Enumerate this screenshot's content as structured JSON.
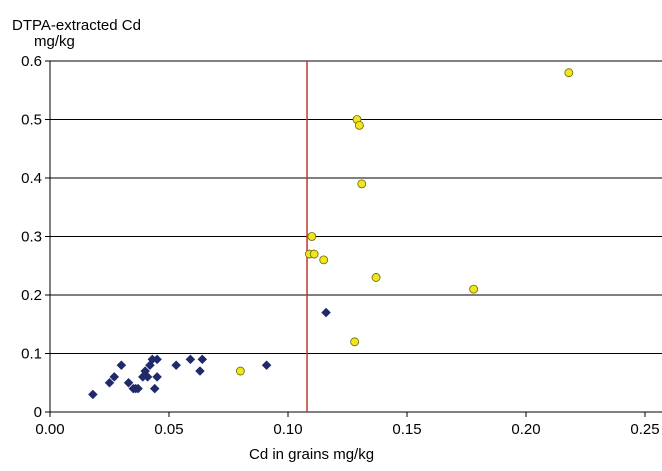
{
  "chart_data": {
    "type": "scatter",
    "title": "",
    "ylabel_line1": "DTPA-extracted Cd",
    "ylabel_line2": "mg/kg",
    "xlabel": "Cd in grains mg/kg",
    "xlim": [
      0,
      0.25
    ],
    "ylim": [
      0,
      0.6
    ],
    "xticks": [
      "0.00",
      "0.05",
      "0.10",
      "0.15",
      "0.20",
      "0.25"
    ],
    "yticks": [
      "0",
      "0.1",
      "0.2",
      "0.3",
      "0.4",
      "0.5",
      "0.6"
    ],
    "grid": "horizontal",
    "threshold_x": 0.108,
    "colors": {
      "threshold_line": "#c0392b",
      "diamond": "#1f2a6b",
      "circle_fill": "#f0e61e",
      "circle_stroke": "#6b6200",
      "grid": "#000000"
    },
    "series": [
      {
        "marker": "diamond",
        "points": [
          [
            0.018,
            0.03
          ],
          [
            0.025,
            0.05
          ],
          [
            0.027,
            0.06
          ],
          [
            0.03,
            0.08
          ],
          [
            0.033,
            0.05
          ],
          [
            0.035,
            0.04
          ],
          [
            0.036,
            0.04
          ],
          [
            0.037,
            0.04
          ],
          [
            0.039,
            0.06
          ],
          [
            0.04,
            0.07
          ],
          [
            0.041,
            0.06
          ],
          [
            0.042,
            0.08
          ],
          [
            0.043,
            0.09
          ],
          [
            0.044,
            0.04
          ],
          [
            0.045,
            0.09
          ],
          [
            0.045,
            0.06
          ],
          [
            0.053,
            0.08
          ],
          [
            0.059,
            0.09
          ],
          [
            0.063,
            0.07
          ],
          [
            0.064,
            0.09
          ],
          [
            0.091,
            0.08
          ],
          [
            0.116,
            0.17
          ]
        ]
      },
      {
        "marker": "circle",
        "points": [
          [
            0.08,
            0.07
          ],
          [
            0.109,
            0.27
          ],
          [
            0.11,
            0.3
          ],
          [
            0.111,
            0.27
          ],
          [
            0.115,
            0.26
          ],
          [
            0.128,
            0.12
          ],
          [
            0.129,
            0.5
          ],
          [
            0.13,
            0.49
          ],
          [
            0.131,
            0.39
          ],
          [
            0.137,
            0.23
          ],
          [
            0.178,
            0.21
          ],
          [
            0.218,
            0.58
          ]
        ]
      }
    ]
  }
}
